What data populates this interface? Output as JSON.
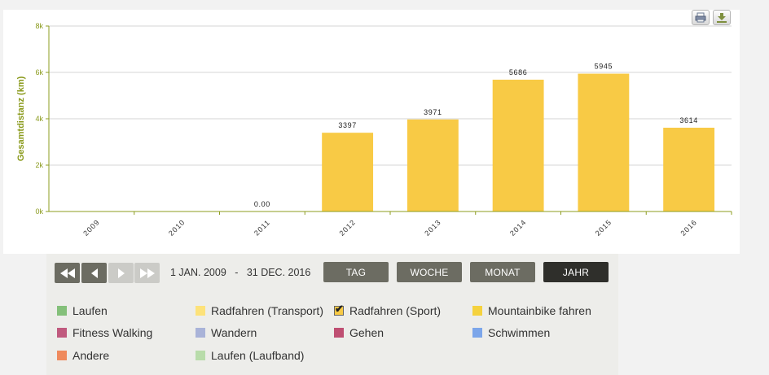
{
  "colors": {
    "bar": "#f8ca45",
    "axis": "#8c9c1f",
    "axis_label": "#8a9a1c",
    "grid": "#d4d4d4"
  },
  "chart_data": {
    "type": "bar",
    "ylabel": "Gesamtdistanz (km)",
    "ylim": [
      0,
      8000
    ],
    "yticks": [
      {
        "value": 0,
        "label": "0k"
      },
      {
        "value": 2000,
        "label": "2k"
      },
      {
        "value": 4000,
        "label": "4k"
      },
      {
        "value": 6000,
        "label": "6k"
      },
      {
        "value": 8000,
        "label": "8k"
      }
    ],
    "grid": true,
    "categories": [
      "2009",
      "2010",
      "2011",
      "2012",
      "2013",
      "2014",
      "2015",
      "2016"
    ],
    "values": [
      null,
      null,
      0,
      3397,
      3971,
      5686,
      5945,
      3614
    ],
    "data_labels": [
      "",
      "",
      "0.00",
      "3397",
      "3971",
      "5686",
      "5945",
      "3614"
    ]
  },
  "toolbar": {
    "print_icon": "printer-icon",
    "download_icon": "download-icon"
  },
  "navigation": {
    "first_icon": "double-left-icon",
    "prev_icon": "left-icon",
    "next_icon": "right-icon",
    "last_icon": "double-right-icon"
  },
  "date_range": {
    "start": "1 JAN. 2009",
    "separator": "-",
    "end": "31 DEC. 2016"
  },
  "periods": [
    {
      "label": "TAG",
      "selected": false
    },
    {
      "label": "WOCHE",
      "selected": false
    },
    {
      "label": "MONAT",
      "selected": false
    },
    {
      "label": "JAHR",
      "selected": true
    }
  ],
  "legend": [
    {
      "label": "Laufen",
      "color": "#84c07a",
      "checked": false
    },
    {
      "label": "Radfahren (Transport)",
      "color": "#fde27a",
      "checked": false
    },
    {
      "label": "Radfahren (Sport)",
      "color": "#f8ca45",
      "checked": true
    },
    {
      "label": "Mountainbike fahren",
      "color": "#f5d23e",
      "checked": false
    },
    {
      "label": "Fitness Walking",
      "color": "#c05a7e",
      "checked": false
    },
    {
      "label": "Wandern",
      "color": "#a9b3d8",
      "checked": false
    },
    {
      "label": "Gehen",
      "color": "#bf4f72",
      "checked": false
    },
    {
      "label": "Schwimmen",
      "color": "#7ca6ea",
      "checked": false
    },
    {
      "label": "Andere",
      "color": "#ef8a5d",
      "checked": false
    },
    {
      "label": "Laufen (Laufband)",
      "color": "#b8dcaa",
      "checked": false
    }
  ]
}
